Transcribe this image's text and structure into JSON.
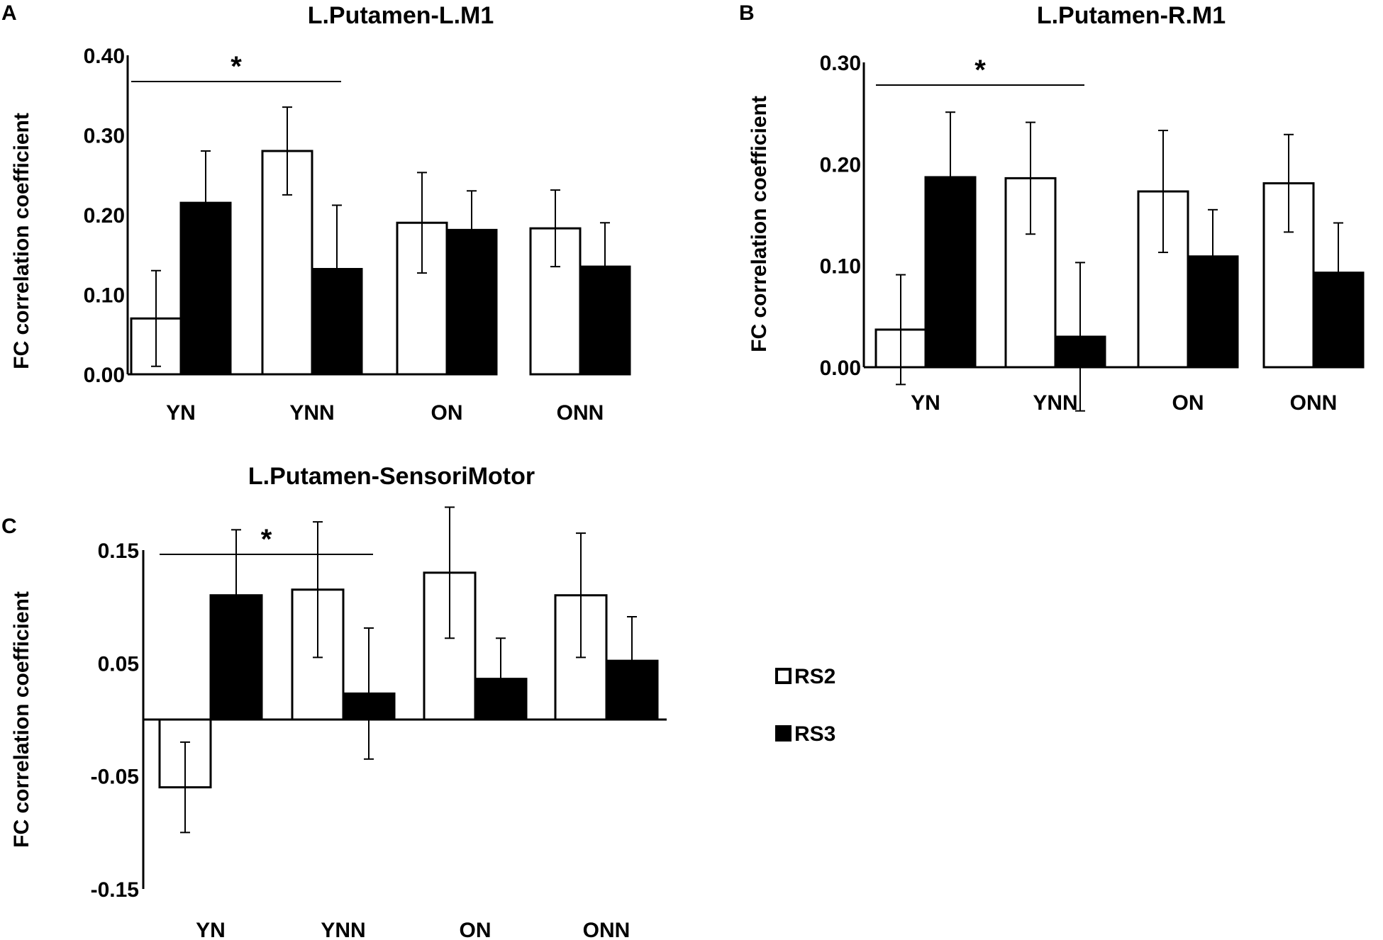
{
  "figure": {
    "series_names": [
      "RS2",
      "RS3"
    ],
    "series_colors": [
      "#ffffff",
      "#000000"
    ],
    "legend": {
      "rs2_label": "RS2",
      "rs3_label": "RS3",
      "placement": "right of panel C"
    }
  },
  "chart_data": [
    {
      "panel": "A",
      "type": "bar",
      "title": "L.Putamen-L.M1",
      "xlabel": "",
      "ylabel": "FC correlation coefficient",
      "categories": [
        "YN",
        "YNN",
        "ON",
        "ONN"
      ],
      "ylim": [
        0.0,
        0.4
      ],
      "yticks": [
        "0.00",
        "0.10",
        "0.20",
        "0.30",
        "0.40"
      ],
      "series": [
        {
          "name": "RS2",
          "values": [
            0.07,
            0.28,
            0.19,
            0.183
          ],
          "errors": [
            0.06,
            0.055,
            0.063,
            0.048
          ]
        },
        {
          "name": "RS3",
          "values": [
            0.215,
            0.132,
            0.181,
            0.135
          ],
          "errors": [
            0.065,
            0.08,
            0.049,
            0.055
          ]
        }
      ],
      "significance": {
        "label": "*",
        "from": "YN",
        "to": "YNN"
      }
    },
    {
      "panel": "B",
      "type": "bar",
      "title": "L.Putamen-R.M1",
      "xlabel": "",
      "ylabel": "FC correlation coefficient",
      "categories": [
        "YN",
        "YNN",
        "ON",
        "ONN"
      ],
      "ylim": [
        0.0,
        0.3
      ],
      "yticks": [
        "0.00",
        "0.10",
        "0.20",
        "0.30"
      ],
      "series": [
        {
          "name": "RS2",
          "values": [
            0.037,
            0.186,
            0.173,
            0.181
          ],
          "errors": [
            0.054,
            0.055,
            0.06,
            0.048
          ]
        },
        {
          "name": "RS3",
          "values": [
            0.187,
            0.03,
            0.109,
            0.093
          ],
          "errors": [
            0.064,
            0.073,
            0.046,
            0.049
          ]
        }
      ],
      "significance": {
        "label": "*",
        "from": "YN",
        "to": "YNN"
      }
    },
    {
      "panel": "C",
      "type": "bar",
      "title": "L.Putamen-SensoriMotor",
      "xlabel": "",
      "ylabel": "FC correlation coefficient",
      "categories": [
        "YN",
        "YNN",
        "ON",
        "ONN"
      ],
      "ylim": [
        -0.15,
        0.15
      ],
      "yticks": [
        "-0.15",
        "-0.05",
        "0.05",
        "0.15"
      ],
      "series": [
        {
          "name": "RS2",
          "values": [
            -0.06,
            0.115,
            0.13,
            0.11
          ],
          "errors": [
            0.04,
            0.06,
            0.058,
            0.055
          ]
        },
        {
          "name": "RS3",
          "values": [
            0.11,
            0.023,
            0.036,
            0.052
          ],
          "errors": [
            0.058,
            0.058,
            0.036,
            0.039
          ]
        }
      ],
      "significance": {
        "label": "*",
        "from": "YN",
        "to": "YNN"
      }
    }
  ]
}
